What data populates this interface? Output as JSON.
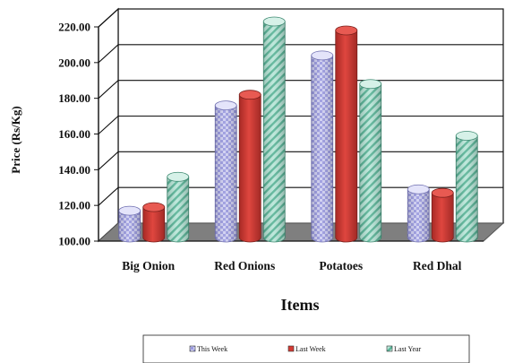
{
  "chart_data": {
    "type": "bar",
    "title": "",
    "xlabel": "Items",
    "ylabel": "Price (Rs/Kg)",
    "categories": [
      "Big Onion",
      "Red Onions",
      "Potatoes",
      "Red Dhal"
    ],
    "series": [
      {
        "name": "This Week",
        "values": [
          115,
          174,
          202,
          127
        ],
        "color": "#c8c8f0",
        "pattern": "dots"
      },
      {
        "name": "Last Week",
        "values": [
          117,
          180,
          216,
          125
        ],
        "color": "#d43a34",
        "pattern": "solid"
      },
      {
        "name": "Last Year",
        "values": [
          134,
          221,
          186,
          157
        ],
        "color": "#9ad6c4",
        "pattern": "diagonal-stripes"
      }
    ],
    "ylim": [
      100,
      220
    ],
    "yticks": [
      "100.00",
      "120.00",
      "140.00",
      "160.00",
      "180.00",
      "200.00",
      "220.00"
    ],
    "grid": true,
    "legend_position": "bottom",
    "style": "3d-cylinder"
  }
}
